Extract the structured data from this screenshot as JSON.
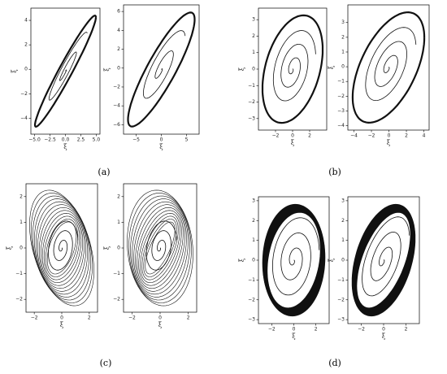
{
  "panels": [
    {
      "label": "(a)",
      "plots": [
        {
          "xlabel": "ξ",
          "ylabel": "ξ̇",
          "xlim": [
            -5.6,
            5.6
          ],
          "ylim": [
            -5.3,
            5.0
          ],
          "xticks": [
            {
              "value": -5,
              "label": "−5.0"
            },
            {
              "value": -2.5,
              "label": "−2.5"
            },
            {
              "value": 0,
              "label": "0.0"
            },
            {
              "value": 2.5,
              "label": "2.5"
            },
            {
              "value": 5,
              "label": "5.0"
            }
          ],
          "yticks": [
            {
              "value": -4,
              "label": "−4"
            },
            {
              "value": -2,
              "label": "−2"
            },
            0,
            2,
            4
          ]
        },
        {
          "xlabel": "ξ",
          "ylabel": "ξ̇",
          "xlim": [
            -7.5,
            7.5
          ],
          "ylim": [
            -7.0,
            6.7
          ],
          "xticks": [
            {
              "value": -5,
              "label": "−5"
            },
            0,
            5
          ],
          "yticks": [
            {
              "value": -6,
              "label": "−6"
            },
            {
              "value": -4,
              "label": "−4"
            },
            {
              "value": -2,
              "label": "−2"
            },
            0,
            2,
            4,
            6
          ]
        }
      ]
    },
    {
      "label": "(b)",
      "plots": [
        {
          "xlabel": "ξ",
          "ylabel": "ξ̇",
          "xlim": [
            -4.0,
            4.0
          ],
          "ylim": [
            -3.7,
            3.7
          ],
          "xticks": [
            {
              "value": -2,
              "label": "−2"
            },
            0,
            2
          ],
          "yticks": [
            {
              "value": -3,
              "label": "−3"
            },
            {
              "value": -2,
              "label": "−2"
            },
            {
              "value": -1,
              "label": "−1"
            },
            0,
            1,
            2,
            3
          ]
        },
        {
          "xlabel": "ξ",
          "ylabel": "ξ̇",
          "xlim": [
            -4.7,
            4.6
          ],
          "ylim": [
            -4.3,
            4.2
          ],
          "xticks": [
            {
              "value": -4,
              "label": "−4"
            },
            {
              "value": -2,
              "label": "−2"
            },
            0,
            2,
            4
          ],
          "yticks": [
            {
              "value": -4,
              "label": "−4"
            },
            {
              "value": -3,
              "label": "−3"
            },
            {
              "value": -2,
              "label": "−2"
            },
            {
              "value": -1,
              "label": "−1"
            },
            0,
            1,
            2,
            3
          ]
        }
      ]
    },
    {
      "label": "(c)",
      "plots": [
        {
          "xlabel": "ξ",
          "ylabel": "ξ̇",
          "xlim": [
            -2.6,
            2.6
          ],
          "ylim": [
            -2.5,
            2.5
          ],
          "xticks": [
            {
              "value": -2,
              "label": "−2"
            },
            0,
            2
          ],
          "yticks": [
            {
              "value": -2,
              "label": "−2"
            },
            {
              "value": -1,
              "label": "−1"
            },
            0,
            1,
            2
          ]
        },
        {
          "xlabel": "ξ",
          "ylabel": "ξ̇",
          "xlim": [
            -2.6,
            2.6
          ],
          "ylim": [
            -2.5,
            2.5
          ],
          "xticks": [
            {
              "value": -2,
              "label": "−2"
            },
            0,
            2
          ],
          "yticks": [
            {
              "value": -2,
              "label": "−2"
            },
            {
              "value": -1,
              "label": "−1"
            },
            0,
            1,
            2
          ]
        }
      ]
    },
    {
      "label": "(d)",
      "plots": [
        {
          "xlabel": "ξ",
          "ylabel": "ξ̇",
          "xlim": [
            -3.2,
            3.2
          ],
          "ylim": [
            -3.2,
            3.2
          ],
          "xticks": [
            {
              "value": -2,
              "label": "−2"
            },
            0,
            2
          ],
          "yticks": [
            {
              "value": -3,
              "label": "−3"
            },
            {
              "value": -2,
              "label": "−2"
            },
            {
              "value": -1,
              "label": "−1"
            },
            0,
            1,
            2,
            3
          ]
        },
        {
          "xlabel": "ξ",
          "ylabel": "ξ̇",
          "xlim": [
            -3.2,
            3.2
          ],
          "ylim": [
            -3.2,
            3.2
          ],
          "xticks": [
            {
              "value": -2,
              "label": "−2"
            },
            0,
            2
          ],
          "yticks": [
            {
              "value": -3,
              "label": "−3"
            },
            {
              "value": -2,
              "label": "−2"
            },
            {
              "value": -1,
              "label": "−1"
            },
            0,
            1,
            2,
            3
          ]
        }
      ]
    }
  ]
}
